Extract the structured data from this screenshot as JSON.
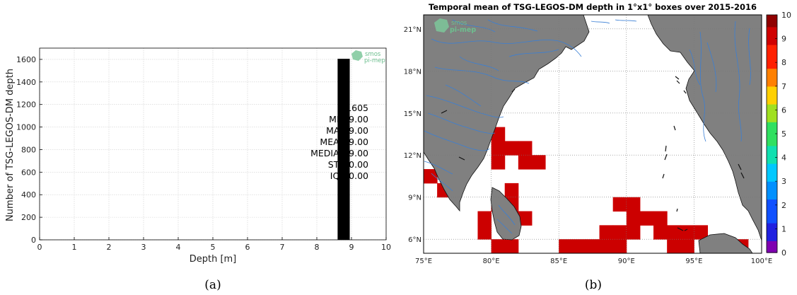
{
  "chart_data": [
    {
      "type": "bar",
      "xlabel": "Depth [m]",
      "ylabel": "Number of TSG-LEGOS-DM depth",
      "xlim": [
        0,
        10
      ],
      "ylim": [
        0,
        1700
      ],
      "xticks": [
        "0",
        "1",
        "2",
        "3",
        "4",
        "5",
        "6",
        "7",
        "8",
        "9",
        "10"
      ],
      "yticks": [
        "0",
        "200",
        "400",
        "600",
        "800",
        "1000",
        "1200",
        "1400",
        "1600"
      ],
      "grid": true,
      "bars": [
        {
          "x0": 8.6,
          "x1": 8.95,
          "value": 1605
        }
      ],
      "stats": [
        {
          "label": "#",
          "value": "1605"
        },
        {
          "label": "MIN",
          "value": "9.00"
        },
        {
          "label": "MAX",
          "value": "9.00"
        },
        {
          "label": "MEAN",
          "value": "9.00"
        },
        {
          "label": "MEDIAN",
          "value": "9.00"
        },
        {
          "label": "STD",
          "value": "0.00"
        },
        {
          "label": "IQR",
          "value": "0.00"
        }
      ],
      "watermark": [
        "smos",
        "pi-mep"
      ],
      "caption": "(a)",
      "bar_color": "#000000"
    },
    {
      "type": "heatmap",
      "title": "Temporal mean of TSG-LEGOS-DM depth in 1°x1° boxes over 2015-2016",
      "lon_range": [
        75,
        100
      ],
      "lat_range": [
        5,
        22
      ],
      "lon_ticks": [
        "75°E",
        "80°E",
        "85°E",
        "90°E",
        "95°E",
        "100°E"
      ],
      "lat_ticks": [
        "6°N",
        "9°N",
        "12°N",
        "15°N",
        "18°N",
        "21°N"
      ],
      "colorbar_ticks": [
        "0",
        "1",
        "2",
        "3",
        "4",
        "5",
        "6",
        "7",
        "8",
        "9",
        "10"
      ],
      "colorbar_range": [
        0,
        10
      ],
      "cell_value": 9,
      "cells_lon_lat": [
        [
          80,
          13
        ],
        [
          80,
          12
        ],
        [
          81,
          12
        ],
        [
          82,
          12
        ],
        [
          80,
          11
        ],
        [
          82,
          11
        ],
        [
          83,
          11
        ],
        [
          75,
          10
        ],
        [
          76,
          9
        ],
        [
          81,
          9
        ],
        [
          80,
          8
        ],
        [
          81,
          8
        ],
        [
          89,
          8
        ],
        [
          90,
          8
        ],
        [
          79,
          7
        ],
        [
          81,
          7
        ],
        [
          82,
          7
        ],
        [
          90,
          7
        ],
        [
          91,
          7
        ],
        [
          92,
          7
        ],
        [
          79,
          6
        ],
        [
          88,
          6
        ],
        [
          89,
          6
        ],
        [
          90,
          6
        ],
        [
          92,
          6
        ],
        [
          93,
          6
        ],
        [
          94,
          6
        ],
        [
          95,
          6
        ],
        [
          80,
          5
        ],
        [
          81,
          5
        ],
        [
          85,
          5
        ],
        [
          86,
          5
        ],
        [
          87,
          5
        ],
        [
          88,
          5
        ],
        [
          89,
          5
        ],
        [
          93,
          5
        ],
        [
          94,
          5
        ],
        [
          96,
          5
        ],
        [
          97,
          5
        ],
        [
          98,
          5
        ]
      ],
      "colors": {
        "land": "#808080",
        "river": "#3a7fd5",
        "cell": "#cc0000",
        "grid": "#777777"
      },
      "watermark": [
        "smos",
        "pi-mep"
      ],
      "caption": "(b)"
    }
  ]
}
